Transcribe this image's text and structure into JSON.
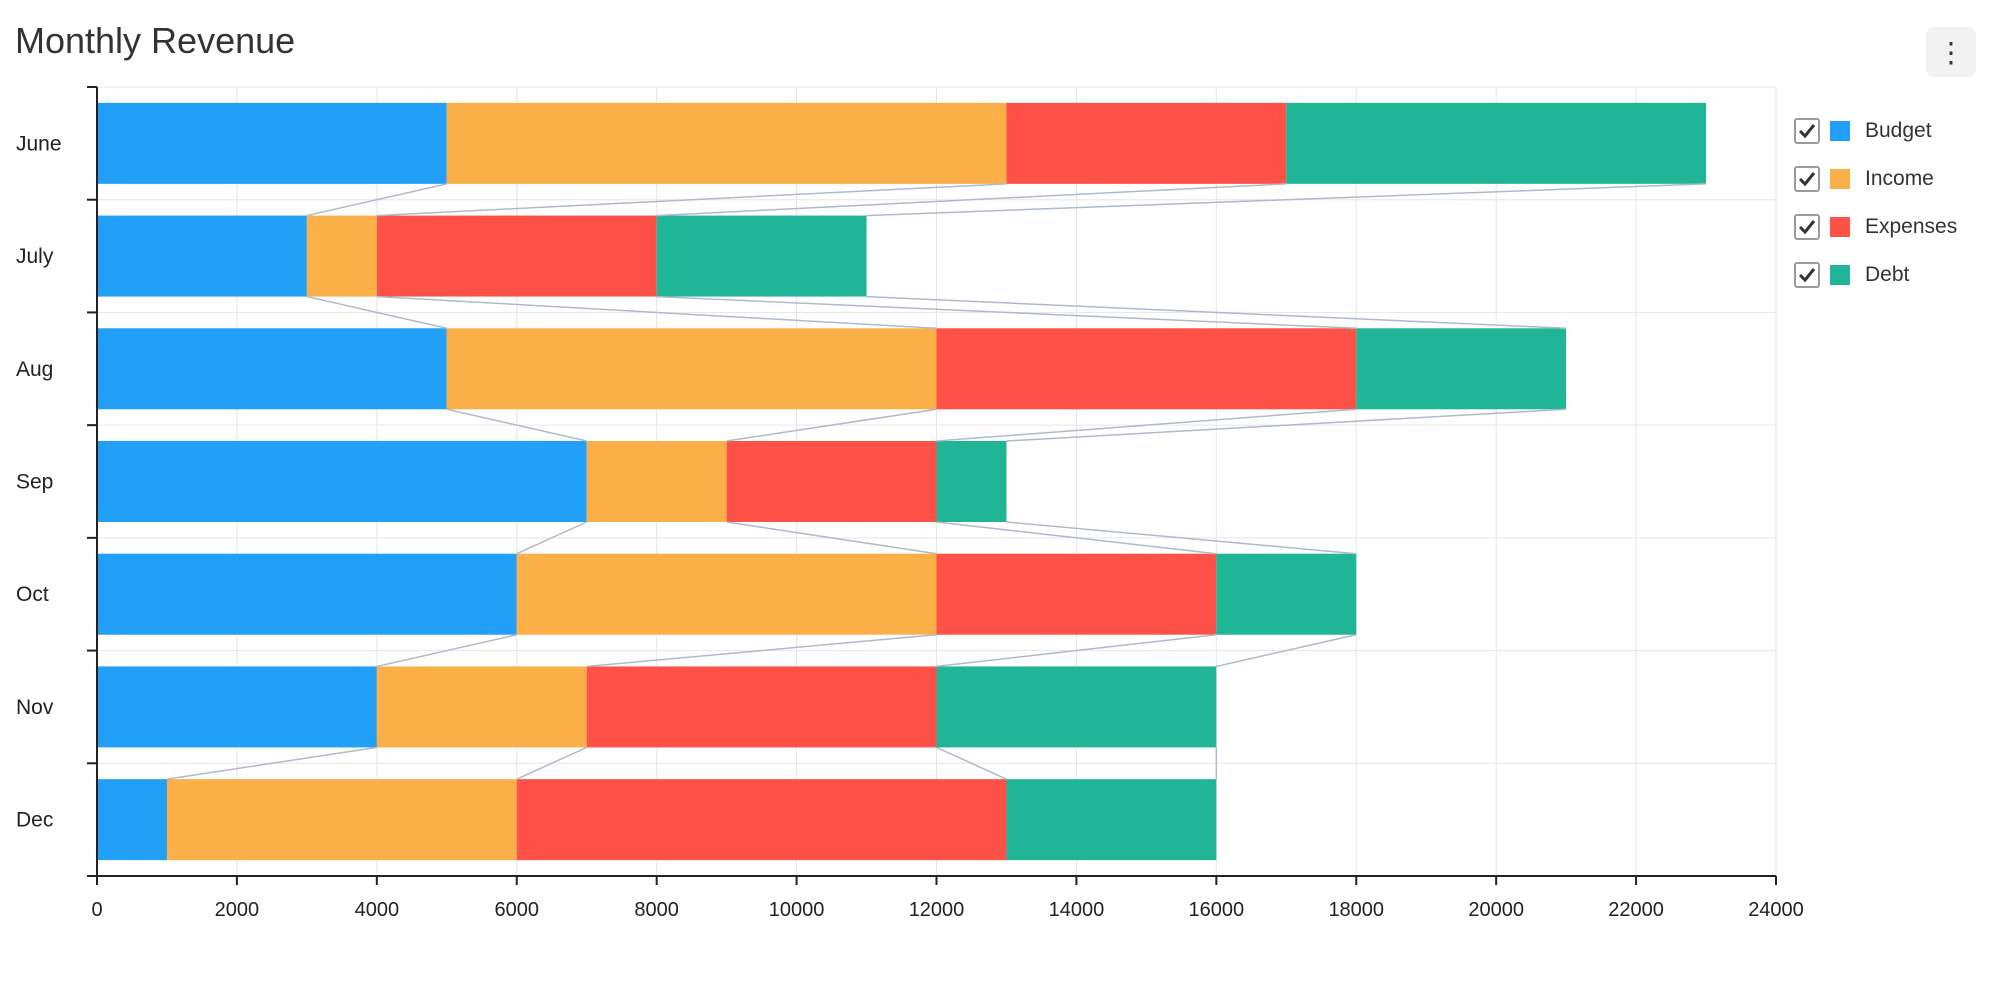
{
  "chart_data": {
    "type": "bar",
    "orientation": "horizontal",
    "stacked": true,
    "title": "Monthly Revenue",
    "categories": [
      "June",
      "July",
      "Aug",
      "Sep",
      "Oct",
      "Nov",
      "Dec"
    ],
    "series": [
      {
        "name": "Budget",
        "color": "#229ff6",
        "values": [
          5000,
          3000,
          5000,
          7000,
          6000,
          4000,
          1000
        ]
      },
      {
        "name": "Income",
        "color": "#faaf48",
        "values": [
          8000,
          1000,
          7000,
          2000,
          6000,
          3000,
          5000
        ]
      },
      {
        "name": "Expenses",
        "color": "#fe5249",
        "values": [
          4000,
          4000,
          6000,
          3000,
          4000,
          5000,
          7000
        ]
      },
      {
        "name": "Debt",
        "color": "#20b596",
        "values": [
          6000,
          3000,
          3000,
          1000,
          2000,
          4000,
          3000
        ]
      }
    ],
    "xlim": [
      0,
      24000
    ],
    "xticks": [
      "0",
      "2000",
      "4000",
      "6000",
      "8000",
      "10000",
      "12000",
      "14000",
      "16000",
      "18000",
      "20000",
      "22000",
      "24000"
    ],
    "grid": true,
    "legend_position": "right",
    "connector_lines": true
  },
  "legend": {
    "items": [
      {
        "label": "Budget",
        "color": "#229ff6",
        "checked": true
      },
      {
        "label": "Income",
        "color": "#faaf48",
        "checked": true
      },
      {
        "label": "Expenses",
        "color": "#fe5249",
        "checked": true
      },
      {
        "label": "Debt",
        "color": "#20b596",
        "checked": true
      }
    ]
  },
  "menu": {
    "icon": "more-vertical-icon",
    "glyph": "⋮"
  }
}
